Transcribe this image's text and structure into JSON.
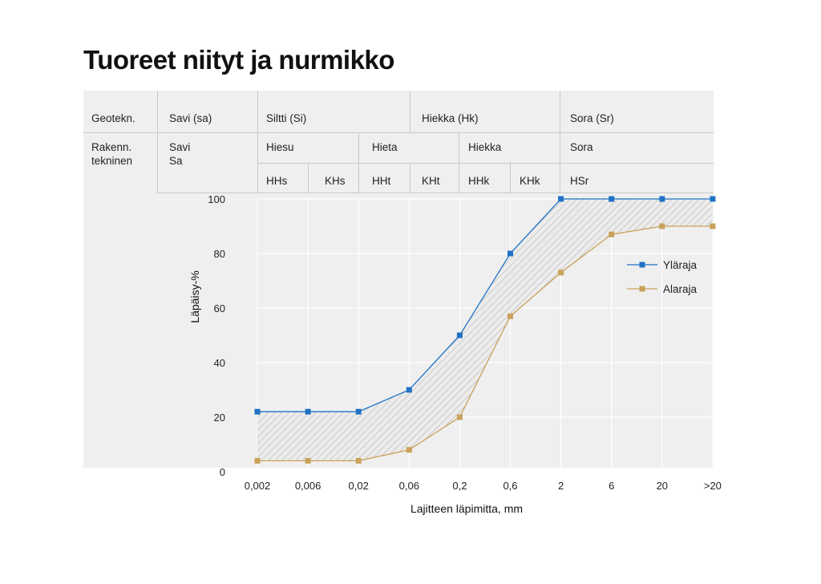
{
  "title": "Tuoreet niityt ja nurmikko",
  "table": {
    "row1": {
      "label": "Geotekn.",
      "savi": "Savi (sa)",
      "siltti": "Siltti (Si)",
      "hiekka": "Hiekka (Hk)",
      "sora": "Sora (Sr)"
    },
    "row2": {
      "label_line1": "Rakenn.",
      "label_line2": "tekninen",
      "savi_line1": "Savi",
      "savi_line2": "Sa",
      "hiesu": "Hiesu",
      "hieta": "Hieta",
      "hiekka": "Hiekka",
      "sora": "Sora"
    },
    "row3": [
      "HHs",
      "KHs",
      "HHt",
      "KHt",
      "HHk",
      "KHk",
      "HSr"
    ]
  },
  "chart_data": {
    "type": "line",
    "title": "",
    "xlabel": "Lajitteen läpimitta, mm",
    "ylabel": "Läpäisy-%",
    "categories": [
      "0,002",
      "0,006",
      "0,02",
      "0,06",
      "0,2",
      "0,6",
      "2",
      "6",
      "20",
      ">20"
    ],
    "y_ticks": [
      0,
      20,
      40,
      60,
      80,
      100
    ],
    "ylim": [
      0,
      100
    ],
    "series": [
      {
        "name": "Yläraja",
        "color": "#1f72c4",
        "values": [
          22,
          22,
          22,
          30,
          50,
          80,
          100,
          100,
          100,
          100
        ]
      },
      {
        "name": "Alaraja",
        "color": "#c9a15a",
        "values": [
          4,
          4,
          4,
          8,
          20,
          57,
          73,
          87,
          90,
          90
        ]
      }
    ],
    "band": "hatched area between Yläraja and Alaraja",
    "legend_position": "right"
  }
}
